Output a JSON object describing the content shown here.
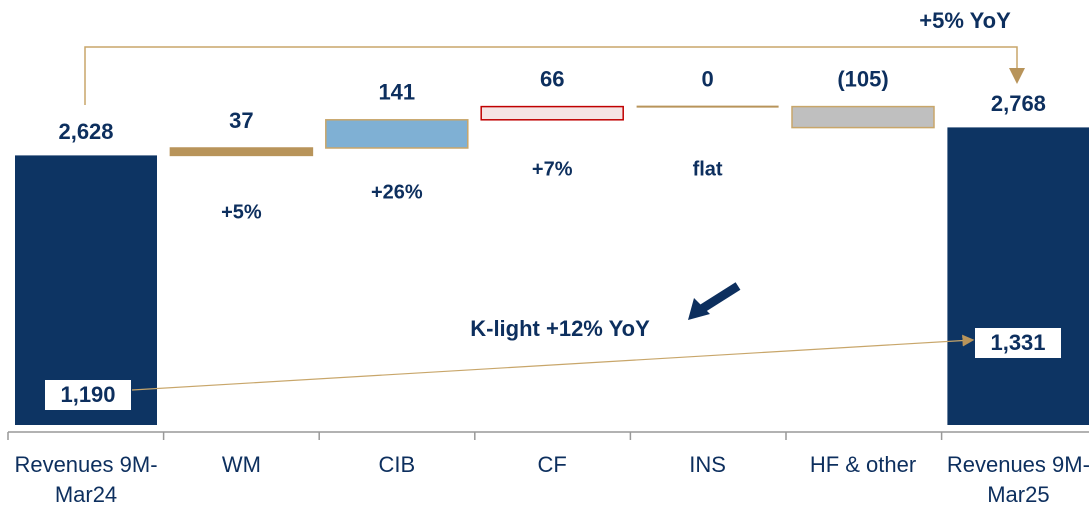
{
  "chart_data": {
    "type": "waterfall",
    "categories": [
      "Revenues 9M-Mar24",
      "WM",
      "CIB",
      "CF",
      "INS",
      "HF & other",
      "Revenues 9M-Mar25"
    ],
    "measures": [
      "total",
      "relative",
      "relative",
      "relative",
      "relative",
      "relative",
      "total"
    ],
    "values": [
      2628,
      37,
      141,
      66,
      0,
      -105,
      2768
    ],
    "value_labels": [
      "2,628",
      "37",
      "141",
      "66",
      "0",
      "(105)",
      "2,768"
    ],
    "colors": [
      "#0d3463",
      "#b8945a",
      "#7fb0d4",
      "#f5e4e4",
      "#b8945a",
      "#bfbfbf",
      "#0d3463"
    ],
    "growth_labels": [
      null,
      "+5%",
      "+26%",
      "+7%",
      "flat",
      null,
      null
    ],
    "ylim": [
      1280,
      3390
    ],
    "annotations": {
      "total_growth": "+5% YoY",
      "k_light": "K-light +12% YoY"
    },
    "k_light": {
      "values": [
        1190,
        1331
      ],
      "value_labels": [
        "1,190",
        "1,331"
      ]
    }
  }
}
